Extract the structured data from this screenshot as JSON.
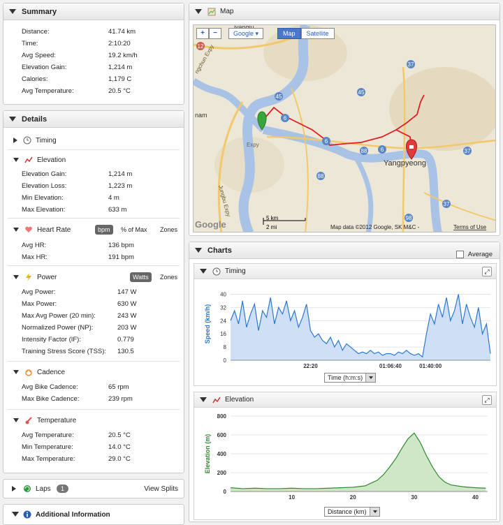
{
  "summary": {
    "title": "Summary",
    "rows": [
      {
        "label": "Distance:",
        "value": "41.74 km"
      },
      {
        "label": "Time:",
        "value": "2:10:20"
      },
      {
        "label": "Avg Speed:",
        "value": "19.2 km/h"
      },
      {
        "label": "Elevation Gain:",
        "value": "1,214 m"
      },
      {
        "label": "Calories:",
        "value": "1,179 C"
      },
      {
        "label": "Avg Temperature:",
        "value": "20.5 °C"
      }
    ]
  },
  "details": {
    "title": "Details",
    "timing_label": "Timing",
    "elevation": {
      "label": "Elevation",
      "rows": [
        {
          "label": "Elevation Gain:",
          "value": "1,214 m"
        },
        {
          "label": "Elevation Loss:",
          "value": "1,223 m"
        },
        {
          "label": "Min Elevation:",
          "value": "4 m"
        },
        {
          "label": "Max Elevation:",
          "value": "633 m"
        }
      ]
    },
    "heart": {
      "label": "Heart Rate",
      "toggle_bpm": "bpm",
      "toggle_pct": "% of Max",
      "toggle_zones": "Zones",
      "rows": [
        {
          "label": "Avg HR:",
          "value": "136 bpm"
        },
        {
          "label": "Max HR:",
          "value": "191 bpm"
        }
      ]
    },
    "power": {
      "label": "Power",
      "toggle_watts": "Watts",
      "toggle_zones": "Zones",
      "rows": [
        {
          "label": "Avg Power:",
          "value": "147 W"
        },
        {
          "label": "Max Power:",
          "value": "630 W"
        },
        {
          "label": "Max Avg Power (20 min):",
          "value": "243 W"
        },
        {
          "label": "Normalized Power (NP):",
          "value": "203 W"
        },
        {
          "label": "Intensity Factor (IF):",
          "value": "0.779"
        },
        {
          "label": "Training Stress Score (TSS):",
          "value": "130.5"
        }
      ]
    },
    "cadence": {
      "label": "Cadence",
      "rows": [
        {
          "label": "Avg Bike Cadence:",
          "value": "65 rpm"
        },
        {
          "label": "Max Bike Cadence:",
          "value": "239 rpm"
        }
      ]
    },
    "temperature": {
      "label": "Temperature",
      "rows": [
        {
          "label": "Avg Temperature:",
          "value": "20.5 °C"
        },
        {
          "label": "Min Temperature:",
          "value": "14.0 °C"
        },
        {
          "label": "Max Temperature:",
          "value": "29.0 °C"
        }
      ]
    }
  },
  "laps": {
    "label": "Laps",
    "count": "1",
    "view_splits": "View Splits"
  },
  "additional": {
    "label": "Additional Information"
  },
  "map": {
    "title": "Map",
    "provider": "Google",
    "btn_map": "Map",
    "btn_satellite": "Satellite",
    "place_label": "Yangpyeong",
    "scale_km": "5 km",
    "scale_mi": "2 mi",
    "attribution": "Map data ©2012 Google, SK M&C -",
    "terms": "Terms of Use",
    "logo": "Google",
    "road_labels": [
      "45",
      "6",
      "37",
      "88",
      "6",
      "6",
      "88",
      "98",
      "37",
      "37",
      "45",
      "12",
      "nam",
      "Expy",
      "Jungbu Expy",
      "ngchun Expy",
      "ivangju"
    ]
  },
  "charts": {
    "title": "Charts",
    "average_label": "Average",
    "timing": {
      "label": "Timing",
      "dropdown": "Time (h:m:s)"
    },
    "elevation": {
      "label": "Elevation",
      "dropdown": "Distance (km)"
    }
  },
  "chart_data": [
    {
      "type": "area",
      "ylabel": "Speed (km/h)",
      "xlabel": "Time (h:m:s)",
      "ylim": [
        0,
        44
      ],
      "yticks": [
        0,
        8,
        16,
        24,
        32,
        40
      ],
      "ytick_labels": [
        "0",
        "8",
        "16",
        "24",
        "32",
        "40"
      ],
      "xticks": [
        "22:20",
        "01:06:40",
        "01:40:00"
      ],
      "x_minutes": [
        0,
        2,
        4,
        6,
        8,
        10,
        12,
        14,
        16,
        18,
        20,
        22,
        24,
        26,
        28,
        30,
        32,
        34,
        36,
        38,
        40,
        42,
        44,
        46,
        48,
        50,
        52,
        54,
        56,
        58,
        60,
        62,
        64,
        66,
        68,
        70,
        72,
        74,
        76,
        78,
        80,
        82,
        84,
        86,
        88,
        90,
        92,
        94,
        96,
        98,
        100,
        102,
        104,
        106,
        108,
        110,
        112,
        114,
        116,
        118,
        120,
        122,
        124,
        126,
        128,
        130
      ],
      "values": [
        24,
        30,
        22,
        36,
        20,
        28,
        34,
        18,
        30,
        26,
        38,
        22,
        32,
        28,
        36,
        24,
        30,
        20,
        26,
        34,
        18,
        14,
        16,
        12,
        10,
        14,
        8,
        12,
        6,
        10,
        8,
        6,
        4,
        5,
        4,
        6,
        4,
        5,
        3,
        4,
        4,
        3,
        5,
        4,
        6,
        4,
        3,
        4,
        2,
        16,
        28,
        22,
        34,
        26,
        38,
        24,
        30,
        40,
        22,
        34,
        26,
        20,
        32,
        16,
        22,
        4
      ]
    },
    {
      "type": "area",
      "ylabel": "Elevation (m)",
      "xlabel": "Distance (km)",
      "ylim": [
        0,
        800
      ],
      "yticks": [
        0,
        200,
        400,
        600,
        800
      ],
      "ytick_labels": [
        "0",
        "200",
        "400",
        "600",
        "800"
      ],
      "xticks": [
        10,
        20,
        30,
        40
      ],
      "xtick_labels": [
        "10",
        "20",
        "30",
        "40"
      ],
      "xlim": [
        0,
        42
      ],
      "x": [
        0,
        2,
        4,
        6,
        8,
        10,
        12,
        14,
        16,
        18,
        20,
        22,
        23,
        24,
        25,
        26,
        27,
        28,
        29,
        30,
        31,
        32,
        33,
        34,
        35,
        36,
        38,
        40,
        41.7
      ],
      "values": [
        40,
        30,
        35,
        30,
        30,
        35,
        30,
        30,
        35,
        40,
        45,
        60,
        90,
        120,
        180,
        260,
        350,
        460,
        560,
        620,
        520,
        380,
        260,
        160,
        100,
        70,
        50,
        40,
        35
      ]
    }
  ]
}
